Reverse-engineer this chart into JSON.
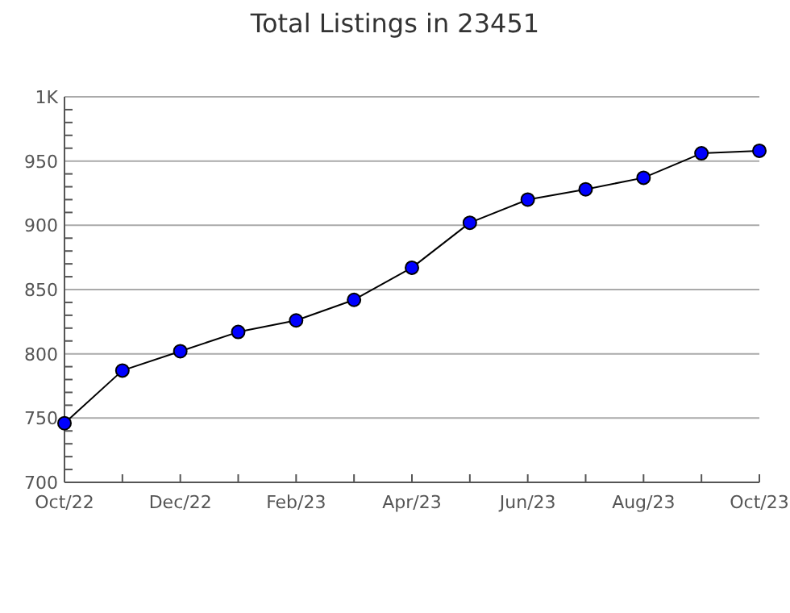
{
  "chart_data": {
    "type": "line",
    "title": "Total Listings in 23451",
    "categories": [
      "Oct/22",
      null,
      "Dec/22",
      null,
      "Feb/23",
      null,
      "Apr/23",
      null,
      "Jun/23",
      null,
      "Aug/23",
      null,
      "Oct/23"
    ],
    "series": [
      {
        "color": "#0000ff",
        "values": [
          746,
          787,
          802,
          817,
          826,
          842,
          867,
          902,
          920,
          928,
          937,
          956,
          958
        ]
      }
    ],
    "ylim": [
      700,
      1000
    ],
    "yticks": [
      700,
      {
        "value": 710,
        "label": null
      },
      {
        "value": 720,
        "label": null
      },
      {
        "value": 730,
        "label": null
      },
      {
        "value": 740,
        "label": null
      },
      750,
      {
        "value": 760,
        "label": null
      },
      {
        "value": 770,
        "label": null
      },
      {
        "value": 780,
        "label": null
      },
      {
        "value": 790,
        "label": null
      },
      800,
      {
        "value": 810,
        "label": null
      },
      {
        "value": 820,
        "label": null
      },
      {
        "value": 830,
        "label": null
      },
      {
        "value": 840,
        "label": null
      },
      850,
      {
        "value": 860,
        "label": null
      },
      {
        "value": 870,
        "label": null
      },
      {
        "value": 880,
        "label": null
      },
      {
        "value": 890,
        "label": null
      },
      900,
      {
        "value": 910,
        "label": null
      },
      {
        "value": 920,
        "label": null
      },
      {
        "value": 930,
        "label": null
      },
      {
        "value": 940,
        "label": null
      },
      950,
      {
        "value": 960,
        "label": null
      },
      {
        "value": 970,
        "label": null
      },
      {
        "value": 980,
        "label": null
      },
      {
        "value": 990,
        "label": null
      },
      {
        "value": 1000,
        "label": "1K"
      }
    ],
    "grid": "y",
    "marker": "circle",
    "line_style": "solid"
  }
}
